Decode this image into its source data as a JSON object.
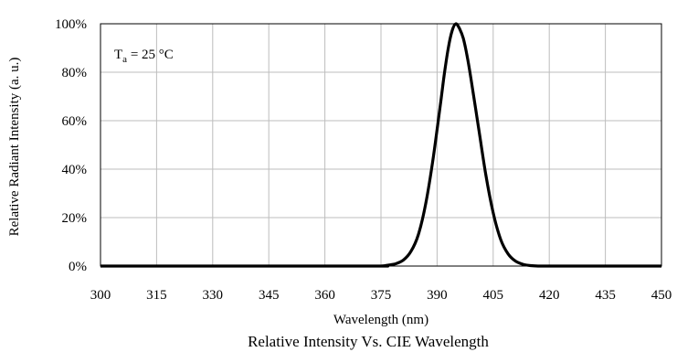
{
  "chart_data": {
    "type": "line",
    "title": "Relative Intensity Vs. CIE Wavelength",
    "xlabel": "Wavelength (nm)",
    "ylabel": "Relative Radiant Intensity (a. u.)",
    "xlim": [
      300,
      450
    ],
    "ylim": [
      0,
      100
    ],
    "x_ticks": [
      "300",
      "315",
      "330",
      "345",
      "360",
      "375",
      "390",
      "405",
      "420",
      "435",
      "450"
    ],
    "x_tick_values": [
      300,
      315,
      330,
      345,
      360,
      375,
      390,
      405,
      420,
      435,
      450
    ],
    "y_ticks": [
      "0%",
      "20%",
      "40%",
      "60%",
      "80%",
      "100%"
    ],
    "y_tick_values": [
      0,
      20,
      40,
      60,
      80,
      100
    ],
    "grid": true,
    "annotation": {
      "main": "T",
      "sub": "a",
      "rest": " = 25 °C"
    },
    "series": [
      {
        "color": "#000000",
        "x": [
          300,
          370,
          375,
          377,
          379,
          381,
          383,
          385,
          387,
          389,
          391,
          392,
          393,
          394,
          395,
          396,
          397,
          398,
          399,
          401,
          403,
          405,
          407,
          409,
          411,
          413,
          415,
          417,
          420,
          450
        ],
        "values": [
          0,
          0,
          0,
          0.4,
          1,
          2.5,
          6,
          13,
          26,
          45,
          68,
          80,
          90,
          97,
          100,
          98,
          94,
          87,
          78,
          58,
          38,
          22,
          11,
          5,
          2,
          0.7,
          0.2,
          0,
          0,
          0
        ]
      }
    ]
  }
}
